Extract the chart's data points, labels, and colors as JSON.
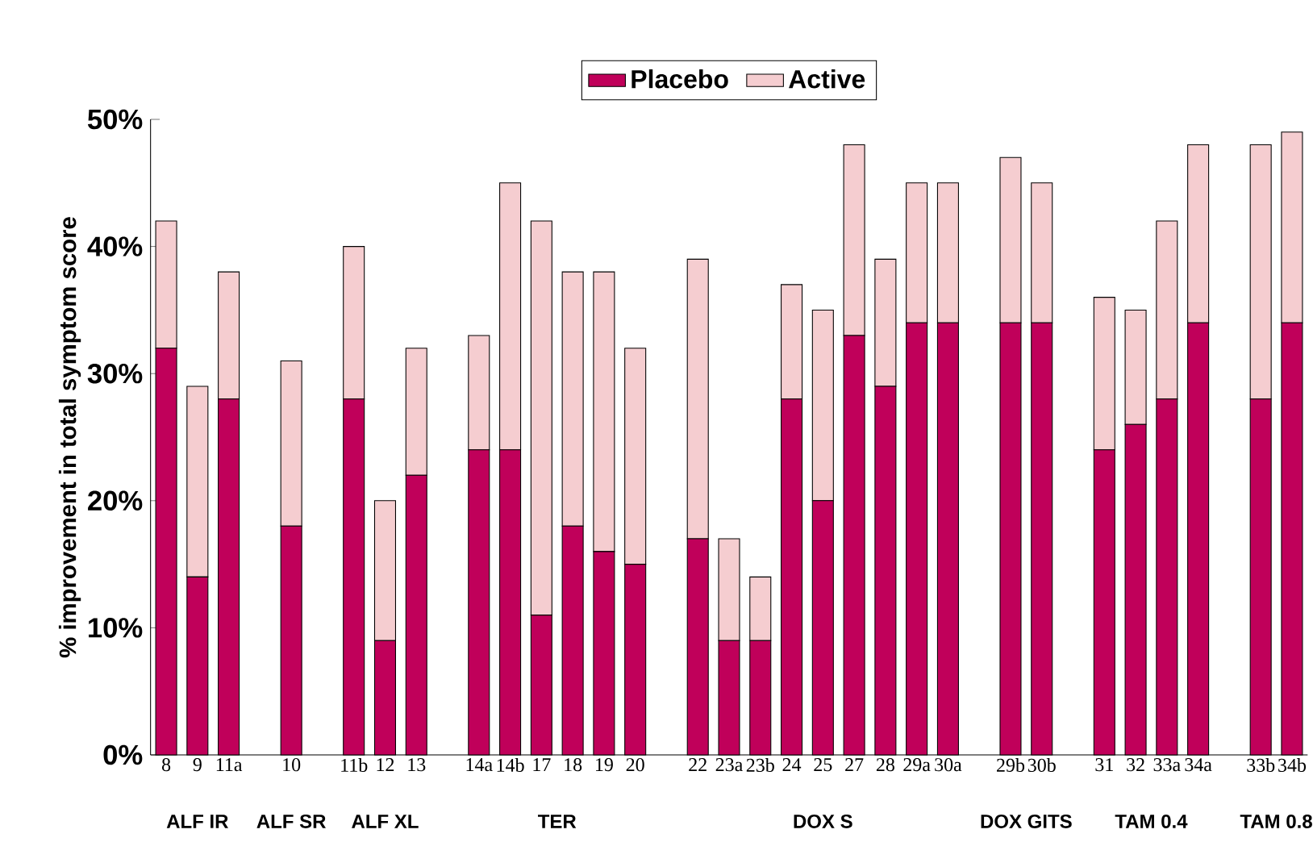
{
  "chart_data": {
    "type": "bar",
    "stacked": true,
    "ylabel": "% improvement in total symptom score",
    "categories": [
      "8",
      "9",
      "11a",
      null,
      "10",
      null,
      "11b",
      "12",
      "13",
      null,
      "14a",
      "14b",
      "17",
      "18",
      "19",
      "20",
      null,
      "22",
      "23a",
      "23b",
      "24",
      "25",
      "27",
      "28",
      "29a",
      "30a",
      null,
      "29b",
      "30b",
      null,
      "31",
      "32",
      "33a",
      "34a",
      null,
      "33b",
      "34b"
    ],
    "series": [
      {
        "name": "Placebo",
        "color": "#c0005a",
        "values": [
          32,
          14,
          28,
          null,
          18,
          null,
          28,
          9,
          22,
          null,
          24,
          24,
          11,
          18,
          16,
          15,
          null,
          17,
          9,
          9,
          28,
          20,
          33,
          29,
          34,
          34,
          null,
          34,
          34,
          null,
          24,
          26,
          28,
          34,
          null,
          28,
          34
        ]
      },
      {
        "name": "Active",
        "color": "#f5cdd0",
        "values": [
          10,
          15,
          10,
          null,
          13,
          null,
          12,
          11,
          10,
          null,
          9,
          21,
          31,
          20,
          22,
          17,
          null,
          22,
          8,
          5,
          9,
          15,
          15,
          10,
          11,
          11,
          null,
          13,
          11,
          null,
          12,
          9,
          14,
          14,
          null,
          20,
          15
        ]
      }
    ],
    "ylim": [
      0,
      50
    ],
    "yticks": [
      {
        "value": 0,
        "label": "0%"
      },
      {
        "value": 10,
        "label": "10%"
      },
      {
        "value": 20,
        "label": "20%"
      },
      {
        "value": 30,
        "label": "30%"
      },
      {
        "value": 40,
        "label": "40%"
      },
      {
        "value": 50,
        "label": "50%"
      }
    ],
    "legend": "top",
    "annotations": [
      "ALF IR",
      "ALF SR",
      "ALF XL",
      "TER",
      "DOX S",
      "DOX GITS",
      "TAM 0.4",
      "TAM 0.8"
    ]
  }
}
